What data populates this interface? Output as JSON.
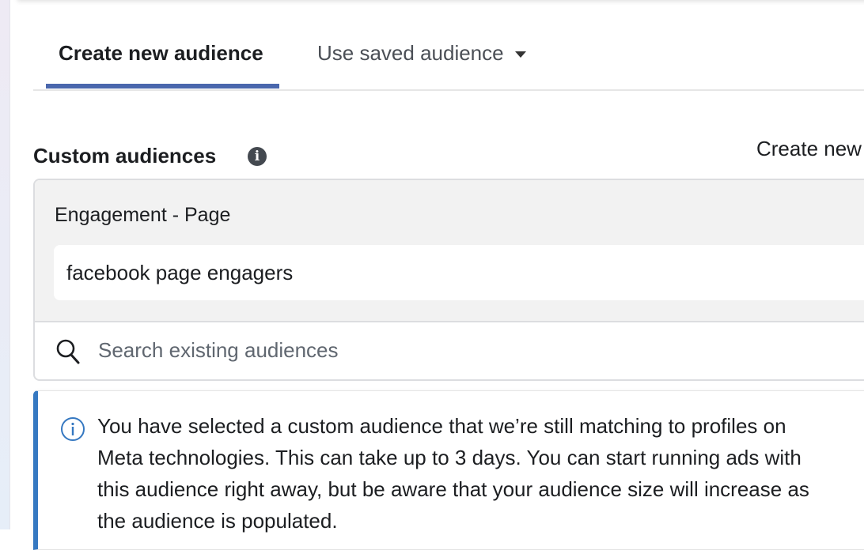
{
  "tabs": [
    {
      "label": "Create new audience",
      "active": true
    },
    {
      "label": "Use saved audience",
      "has_dropdown": true
    }
  ],
  "custom_audiences": {
    "title": "Custom audiences",
    "create_new_label": "Create new",
    "group_label": "Engagement - Page",
    "selected": [
      "facebook page engagers"
    ],
    "search_placeholder": "Search existing audiences"
  },
  "notice": {
    "lines": [
      "You have selected a custom audience that we’re still matching to profiles on",
      "Meta technologies. This can take up to 3 days. You can start running ads with",
      "this audience right away, but be aware that your audience size will increase as",
      "the audience is populated."
    ]
  },
  "colors": {
    "accent": "#4a67ad",
    "notice_border": "#3578c1"
  }
}
